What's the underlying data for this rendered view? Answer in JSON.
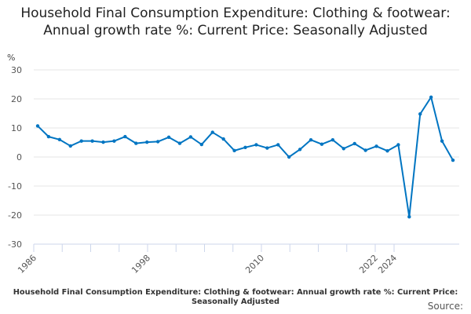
{
  "chart_data": {
    "type": "line",
    "title": "Household Final Consumption Expenditure: Clothing & footwear: Annual growth rate %: Current Price: Seasonally Adjusted",
    "ylabel": "%",
    "ylim": [
      -30,
      30
    ],
    "yticks": [
      30,
      20,
      10,
      0,
      -10,
      -20,
      -30
    ],
    "xtick_labels": [
      "1986",
      "1998",
      "2010",
      "2022",
      "2024"
    ],
    "grid": true,
    "color": "#0075c2",
    "x": [
      1986,
      1987,
      1988,
      1989,
      1990,
      1991,
      1992,
      1993,
      1994,
      1995,
      1996,
      1997,
      1998,
      1999,
      2000,
      2001,
      2002,
      2003,
      2004,
      2005,
      2006,
      2007,
      2008,
      2009,
      2010,
      2011,
      2012,
      2013,
      2014,
      2015,
      2016,
      2017,
      2018,
      2019,
      2020,
      2021,
      2022,
      2023,
      2024
    ],
    "values": [
      10.7,
      7.0,
      6.0,
      3.8,
      5.5,
      5.5,
      5.1,
      5.5,
      7.0,
      4.7,
      5.1,
      5.3,
      6.8,
      4.7,
      6.9,
      4.3,
      8.5,
      6.2,
      2.2,
      3.3,
      4.2,
      3.1,
      4.2,
      0.0,
      2.6,
      5.9,
      4.4,
      5.9,
      2.9,
      4.6,
      2.3,
      3.7,
      2.1,
      4.2,
      -20.6,
      14.8,
      20.6,
      5.5,
      -1.1
    ]
  },
  "caption": "Household Final Consumption Expenditure: Clothing & footwear: Annual growth rate %: Current Price: Seasonally Adjusted",
  "source_label": "Source:"
}
